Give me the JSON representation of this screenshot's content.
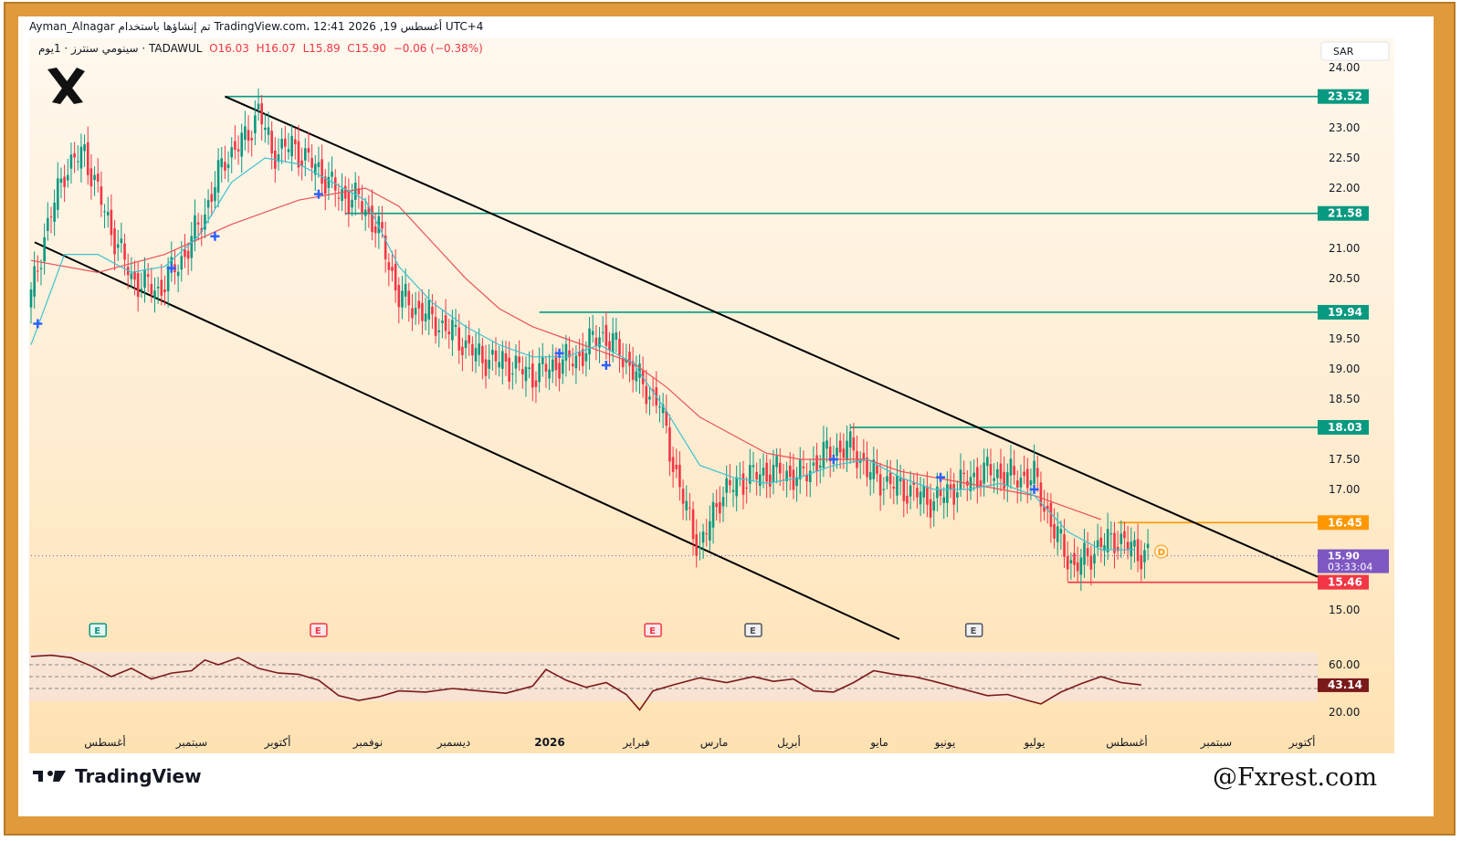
{
  "header": {
    "publisher": "Ayman_Alnagar",
    "published_text": "تم إنشاؤها باستخدام TradingView.com، 12:41 2026 ,19 أغسطس UTC+4"
  },
  "symbol": {
    "name": "سينومي سنترز · 1يوم · TADAWUL",
    "open": "O16.03",
    "high": "H16.07",
    "low": "L15.89",
    "close": "C15.90",
    "change": "−0.06 (−0.38%)"
  },
  "currency": "SAR",
  "footer": {
    "brand": "TradingView",
    "watermark": "@Fxrest.com"
  },
  "colors": {
    "up": "#089981",
    "down": "#f23645",
    "ema_fast": "#3cc2d0",
    "ema_slow": "#e8535a",
    "level_green": "#089981",
    "level_orange": "#ff9800",
    "level_red": "#f23645",
    "price_label": "#7e57c2",
    "rsi_line": "#7a1a1a"
  },
  "chart_data": [
    {
      "type": "candlestick",
      "description_series": "Daily price",
      "y_axis_ticks": [
        24.0,
        23.5,
        23.0,
        22.5,
        22.0,
        21.5,
        21.0,
        20.5,
        20.0,
        19.5,
        19.0,
        18.5,
        18.0,
        17.5,
        17.0,
        16.5,
        16.0,
        15.5,
        15.0
      ],
      "y_axis_labels": [
        "24.00",
        "23.00",
        "22.50",
        "22.00",
        "21.00",
        "20.50",
        "19.50",
        "19.00",
        "18.50",
        "17.50",
        "17.00",
        "15.00"
      ],
      "ylim": [
        14.5,
        24.2
      ],
      "x_axis_labels": [
        "أغسطس",
        "سبتمبر",
        "أكتوبر",
        "نوفمبر",
        "ديسمبر",
        "2026",
        "فبراير",
        "مارس",
        "أبريل",
        "مايو",
        "يونيو",
        "يوليو",
        "أغسطس",
        "سبتمبر",
        "أكتوبر"
      ],
      "price_path": [
        [
          0,
          20.2
        ],
        [
          4,
          21.2
        ],
        [
          10,
          22.3
        ],
        [
          16,
          22.6
        ],
        [
          22,
          21.6
        ],
        [
          30,
          20.5
        ],
        [
          38,
          20.3
        ],
        [
          46,
          20.9
        ],
        [
          52,
          21.6
        ],
        [
          58,
          22.5
        ],
        [
          64,
          22.8
        ],
        [
          68,
          23.3
        ],
        [
          72,
          22.6
        ],
        [
          78,
          22.7
        ],
        [
          86,
          22.3
        ],
        [
          92,
          21.9
        ],
        [
          98,
          21.8
        ],
        [
          104,
          21.3
        ],
        [
          110,
          20.2
        ],
        [
          118,
          19.9
        ],
        [
          126,
          19.6
        ],
        [
          134,
          19.2
        ],
        [
          142,
          19.1
        ],
        [
          150,
          18.9
        ],
        [
          158,
          19.1
        ],
        [
          164,
          19.2
        ],
        [
          170,
          19.6
        ],
        [
          176,
          19.3
        ],
        [
          182,
          18.8
        ],
        [
          188,
          18.4
        ],
        [
          194,
          17.0
        ],
        [
          200,
          16.0
        ],
        [
          206,
          16.9
        ],
        [
          214,
          17.2
        ],
        [
          222,
          17.3
        ],
        [
          230,
          17.2
        ],
        [
          238,
          17.6
        ],
        [
          246,
          17.7
        ],
        [
          250,
          17.3
        ],
        [
          256,
          17.1
        ],
        [
          262,
          17.0
        ],
        [
          270,
          16.8
        ],
        [
          278,
          17.1
        ],
        [
          286,
          17.3
        ],
        [
          294,
          17.2
        ],
        [
          300,
          17.2
        ],
        [
          306,
          16.3
        ],
        [
          312,
          15.7
        ],
        [
          318,
          16.0
        ],
        [
          324,
          16.2
        ],
        [
          330,
          16.0
        ],
        [
          334,
          15.9
        ]
      ],
      "ema_fast_path": [
        [
          0,
          19.4
        ],
        [
          10,
          20.9
        ],
        [
          20,
          20.9
        ],
        [
          30,
          20.6
        ],
        [
          40,
          20.7
        ],
        [
          50,
          21.2
        ],
        [
          60,
          22.1
        ],
        [
          70,
          22.5
        ],
        [
          80,
          22.4
        ],
        [
          90,
          22.1
        ],
        [
          100,
          21.8
        ],
        [
          110,
          20.7
        ],
        [
          120,
          20.1
        ],
        [
          130,
          19.7
        ],
        [
          140,
          19.4
        ],
        [
          150,
          19.2
        ],
        [
          160,
          19.2
        ],
        [
          170,
          19.4
        ],
        [
          180,
          19.1
        ],
        [
          190,
          18.3
        ],
        [
          200,
          17.4
        ],
        [
          210,
          17.2
        ],
        [
          220,
          17.1
        ],
        [
          230,
          17.2
        ],
        [
          240,
          17.4
        ],
        [
          250,
          17.5
        ],
        [
          260,
          17.2
        ],
        [
          270,
          17.0
        ],
        [
          280,
          17.0
        ],
        [
          290,
          17.1
        ],
        [
          300,
          16.9
        ],
        [
          310,
          16.3
        ],
        [
          320,
          16.0
        ],
        [
          330,
          16.0
        ]
      ],
      "ema_slow_path": [
        [
          0,
          20.8
        ],
        [
          20,
          20.6
        ],
        [
          40,
          20.9
        ],
        [
          60,
          21.4
        ],
        [
          80,
          21.8
        ],
        [
          100,
          22.0
        ],
        [
          110,
          21.7
        ],
        [
          120,
          21.1
        ],
        [
          130,
          20.5
        ],
        [
          140,
          20.0
        ],
        [
          150,
          19.7
        ],
        [
          160,
          19.5
        ],
        [
          170,
          19.3
        ],
        [
          180,
          19.1
        ],
        [
          190,
          18.7
        ],
        [
          200,
          18.2
        ],
        [
          210,
          17.9
        ],
        [
          220,
          17.6
        ],
        [
          230,
          17.5
        ],
        [
          240,
          17.5
        ],
        [
          250,
          17.5
        ],
        [
          260,
          17.3
        ],
        [
          270,
          17.2
        ],
        [
          280,
          17.1
        ],
        [
          290,
          17.0
        ],
        [
          300,
          16.9
        ],
        [
          310,
          16.7
        ],
        [
          320,
          16.5
        ]
      ],
      "signals": [
        [
          2,
          19.75
        ],
        [
          42,
          20.67
        ],
        [
          55,
          21.2
        ],
        [
          86,
          21.9
        ],
        [
          158,
          19.26
        ],
        [
          172,
          19.06
        ],
        [
          240,
          17.5
        ],
        [
          272,
          17.2
        ],
        [
          300,
          17.0
        ]
      ],
      "channel": {
        "upper": [
          [
            58,
            23.52
          ],
          [
            345,
            16.0
          ]
        ],
        "lower": [
          [
            0,
            21.1
          ],
          [
            218,
            14.5
          ]
        ]
      },
      "levels": [
        {
          "value": 23.52,
          "label": "23.52",
          "color": "#089981",
          "from_x": 58
        },
        {
          "value": 21.58,
          "label": "21.58",
          "color": "#089981",
          "from_x": 94
        },
        {
          "value": 19.94,
          "label": "19.94",
          "color": "#089981",
          "from_x": 152
        },
        {
          "value": 18.03,
          "label": "18.03",
          "color": "#089981",
          "from_x": 245
        },
        {
          "value": 16.45,
          "label": "16.45",
          "color": "#ff9800",
          "from_x": 325
        },
        {
          "value": 15.46,
          "label": "15.46",
          "color": "#f23645",
          "from_x": 310
        }
      ],
      "last_price": {
        "value": 15.9,
        "label": "15.90",
        "countdown": "03:33:04"
      },
      "event_markers": [
        {
          "x": 20,
          "label": "E",
          "kind": "green"
        },
        {
          "x": 86,
          "label": "E",
          "kind": "red"
        },
        {
          "x": 186,
          "label": "E",
          "kind": "red"
        },
        {
          "x": 216,
          "label": "E",
          "kind": "grey"
        },
        {
          "x": 282,
          "label": "E",
          "kind": "grey"
        }
      ],
      "dividend_marker": {
        "x": 338,
        "label": "D"
      }
    },
    {
      "type": "line",
      "description_series": "RSI",
      "ylim": [
        20,
        70
      ],
      "y_axis_labels": [
        "60.00",
        "20.00"
      ],
      "bands": [
        60,
        50,
        40
      ],
      "last_value": {
        "value": 43.14,
        "label": "43.14"
      },
      "rsi_path": [
        [
          0,
          67
        ],
        [
          6,
          68
        ],
        [
          12,
          66
        ],
        [
          18,
          59
        ],
        [
          24,
          50
        ],
        [
          30,
          57
        ],
        [
          36,
          48
        ],
        [
          42,
          53
        ],
        [
          48,
          55
        ],
        [
          52,
          64
        ],
        [
          56,
          60
        ],
        [
          62,
          66
        ],
        [
          68,
          57
        ],
        [
          74,
          53
        ],
        [
          80,
          52
        ],
        [
          86,
          47
        ],
        [
          92,
          34
        ],
        [
          98,
          30
        ],
        [
          104,
          33
        ],
        [
          110,
          38
        ],
        [
          118,
          37
        ],
        [
          126,
          40
        ],
        [
          134,
          38
        ],
        [
          142,
          36
        ],
        [
          150,
          42
        ],
        [
          154,
          56
        ],
        [
          160,
          47
        ],
        [
          166,
          41
        ],
        [
          172,
          45
        ],
        [
          178,
          35
        ],
        [
          182,
          22
        ],
        [
          186,
          38
        ],
        [
          192,
          43
        ],
        [
          200,
          49
        ],
        [
          208,
          45
        ],
        [
          216,
          50
        ],
        [
          222,
          46
        ],
        [
          228,
          48
        ],
        [
          234,
          38
        ],
        [
          240,
          37
        ],
        [
          246,
          45
        ],
        [
          252,
          55
        ],
        [
          258,
          52
        ],
        [
          264,
          50
        ],
        [
          270,
          46
        ],
        [
          278,
          40
        ],
        [
          286,
          34
        ],
        [
          292,
          35
        ],
        [
          298,
          30
        ],
        [
          302,
          27
        ],
        [
          308,
          37
        ],
        [
          314,
          44
        ],
        [
          320,
          50
        ],
        [
          326,
          45
        ],
        [
          332,
          43
        ]
      ]
    }
  ]
}
